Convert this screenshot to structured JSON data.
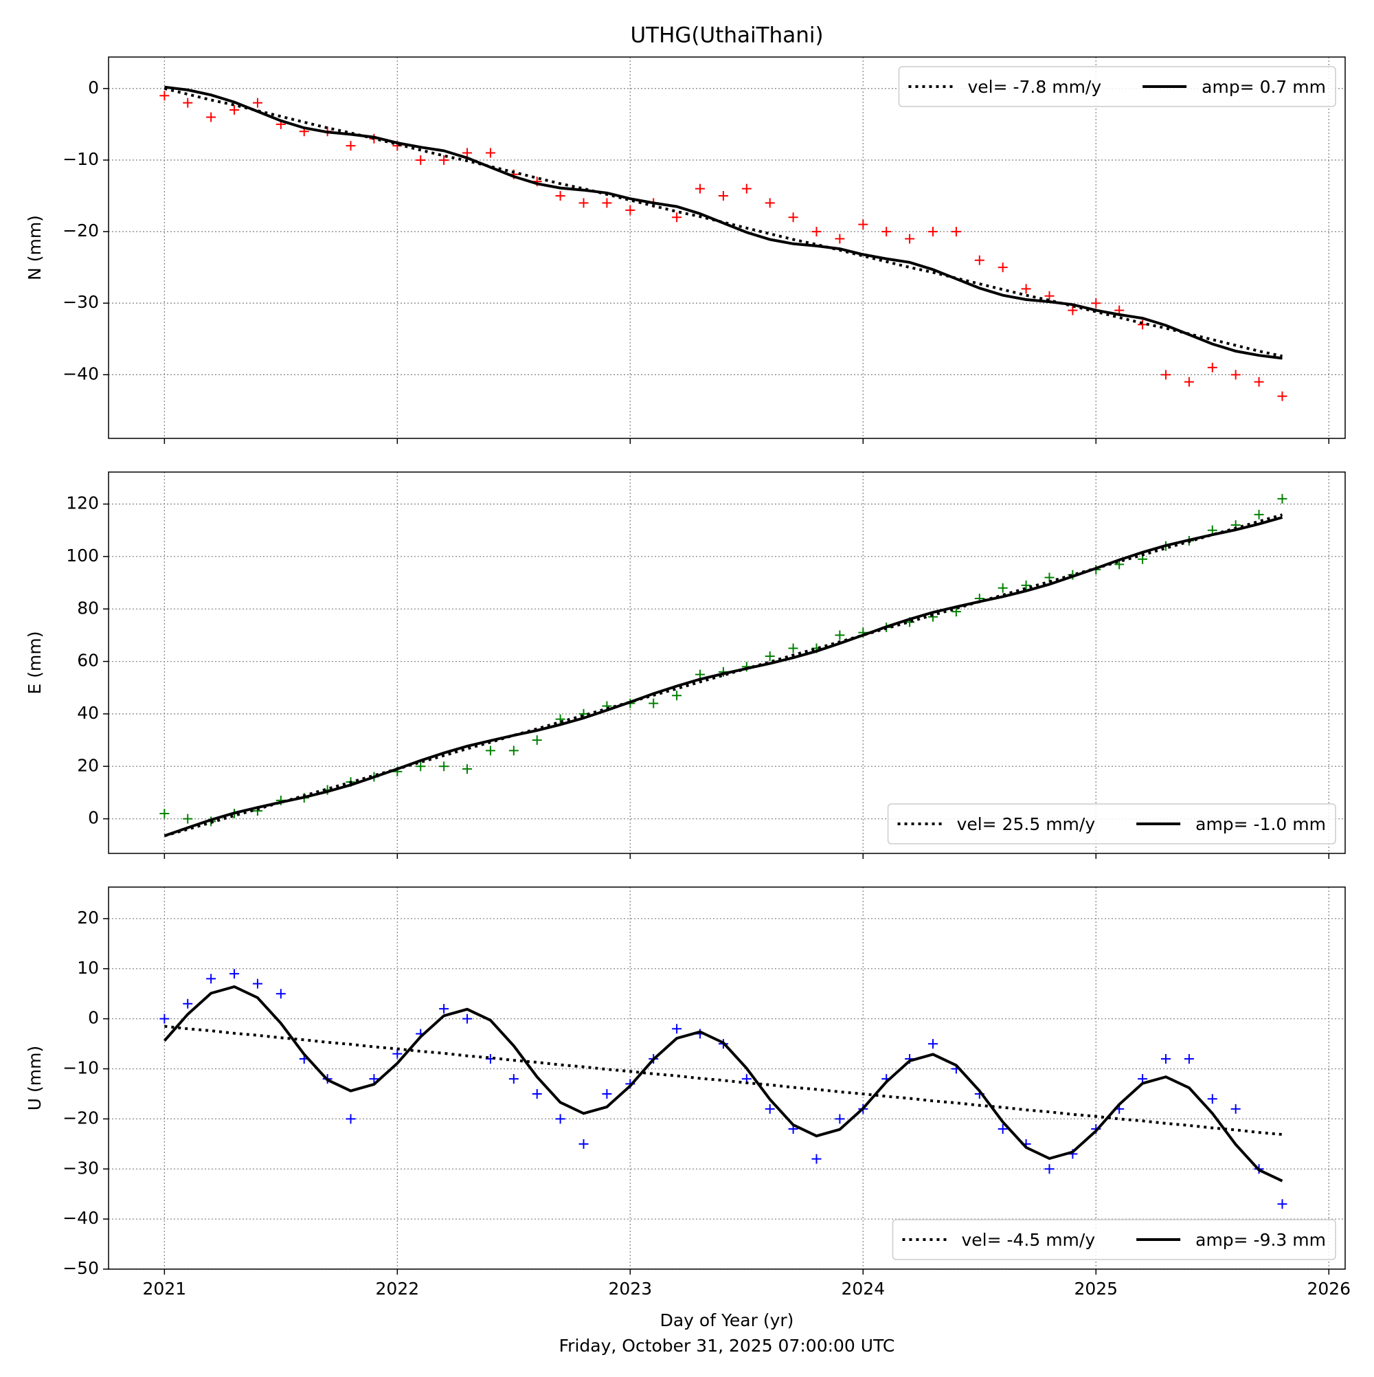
{
  "chart_data": [
    {
      "type": "scatter",
      "title": "UTHG(UthaiThani)",
      "ylabel": "N (mm)",
      "legend": "upper right",
      "grid": true,
      "show_xtick_labels": false,
      "xlim": [
        2020.76,
        2026.07
      ],
      "xticks": [
        2021,
        2022,
        2023,
        2024,
        2025,
        2026
      ],
      "ylim": [
        -48.9,
        4.4
      ],
      "yticks": [
        {
          "value": -40,
          "label": "−40"
        },
        {
          "value": -30,
          "label": "−30"
        },
        {
          "value": -20,
          "label": "−20"
        },
        {
          "value": -10,
          "label": "−10"
        },
        0
      ],
      "x": [
        2021.0,
        2021.1,
        2021.2,
        2021.3,
        2021.4,
        2021.5,
        2021.6,
        2021.7,
        2021.8,
        2021.9,
        2022.0,
        2022.1,
        2022.2,
        2022.3,
        2022.4,
        2022.5,
        2022.6,
        2022.7,
        2022.8,
        2022.9,
        2023.0,
        2023.1,
        2023.2,
        2023.3,
        2023.4,
        2023.5,
        2023.6,
        2023.7,
        2023.8,
        2023.9,
        2024.0,
        2024.1,
        2024.2,
        2024.3,
        2024.4,
        2024.5,
        2024.6,
        2024.7,
        2024.8,
        2024.9,
        2025.0,
        2025.1,
        2025.2,
        2025.3,
        2025.4,
        2025.5,
        2025.6,
        2025.7,
        2025.8
      ],
      "series": [
        {
          "style": "markers",
          "color": "#ff0000",
          "values": [
            -1,
            -2,
            -4,
            -3,
            -2,
            -5,
            -6,
            -6,
            -8,
            -7,
            -8,
            -10,
            -10,
            -9,
            -9,
            -12,
            -13,
            -15,
            -16,
            -16,
            -17,
            -16,
            -18,
            -14,
            -15,
            -14,
            -16,
            -18,
            -20,
            -21,
            -19,
            -20,
            -21,
            -20,
            -20,
            -24,
            -25,
            -28,
            -29,
            -31,
            -30,
            -31,
            -33,
            -40,
            -41,
            -39,
            -40,
            -41,
            -43
          ]
        },
        {
          "style": "dotted",
          "color": "#000000",
          "name": "vel= -7.8 mm/y",
          "values": [
            0,
            -0.8,
            -1.6,
            -2.3,
            -3.1,
            -3.9,
            -4.7,
            -5.5,
            -6.2,
            -7.0,
            -7.8,
            -8.6,
            -9.4,
            -10.1,
            -10.9,
            -11.7,
            -12.5,
            -13.3,
            -14.0,
            -14.8,
            -15.6,
            -16.4,
            -17.2,
            -17.9,
            -18.7,
            -19.5,
            -20.3,
            -21.1,
            -21.8,
            -22.6,
            -23.4,
            -24.2,
            -25.0,
            -25.7,
            -26.5,
            -27.3,
            -28.1,
            -28.9,
            -29.6,
            -30.4,
            -31.2,
            -32.0,
            -32.8,
            -33.5,
            -34.3,
            -35.1,
            -35.9,
            -36.7,
            -37.4
          ]
        },
        {
          "style": "solid",
          "color": "#000000",
          "name": "amp= 0.7 mm",
          "values": [
            0.2,
            -0.2,
            -0.9,
            -1.9,
            -3.2,
            -4.5,
            -5.5,
            -6.1,
            -6.4,
            -6.8,
            -7.6,
            -8.2,
            -8.7,
            -9.7,
            -11.0,
            -12.3,
            -13.3,
            -13.9,
            -14.2,
            -14.6,
            -15.4,
            -16.0,
            -16.5,
            -17.5,
            -18.8,
            -20.1,
            -21.1,
            -21.7,
            -22.0,
            -22.4,
            -23.2,
            -23.8,
            -24.3,
            -25.3,
            -26.6,
            -27.9,
            -28.9,
            -29.5,
            -29.8,
            -30.2,
            -31.0,
            -31.6,
            -32.1,
            -33.1,
            -34.4,
            -35.7,
            -36.7,
            -37.3,
            -37.7
          ]
        }
      ]
    },
    {
      "type": "scatter",
      "ylabel": "E (mm)",
      "legend": "lower right",
      "grid": true,
      "show_xtick_labels": false,
      "xlim": [
        2020.76,
        2026.07
      ],
      "xticks": [
        2021,
        2022,
        2023,
        2024,
        2025,
        2026
      ],
      "ylim": [
        -13.2,
        132.2
      ],
      "yticks": [
        0,
        20,
        40,
        60,
        80,
        100,
        120
      ],
      "x": [
        2021.0,
        2021.1,
        2021.2,
        2021.3,
        2021.4,
        2021.5,
        2021.6,
        2021.7,
        2021.8,
        2021.9,
        2022.0,
        2022.1,
        2022.2,
        2022.3,
        2022.4,
        2022.5,
        2022.6,
        2022.7,
        2022.8,
        2022.9,
        2023.0,
        2023.1,
        2023.2,
        2023.3,
        2023.4,
        2023.5,
        2023.6,
        2023.7,
        2023.8,
        2023.9,
        2024.0,
        2024.1,
        2024.2,
        2024.3,
        2024.4,
        2024.5,
        2024.6,
        2024.7,
        2024.8,
        2024.9,
        2025.0,
        2025.1,
        2025.2,
        2025.3,
        2025.4,
        2025.5,
        2025.6,
        2025.7,
        2025.8
      ],
      "series": [
        {
          "style": "markers",
          "color": "#008000",
          "values": [
            2,
            0,
            -1,
            2,
            3,
            7,
            8,
            11,
            14,
            16,
            18,
            20,
            20,
            19,
            26,
            26,
            30,
            38,
            40,
            43,
            44,
            44,
            47,
            55,
            56,
            58,
            62,
            65,
            65,
            70,
            71,
            73,
            75,
            77,
            79,
            84,
            88,
            89,
            92,
            93,
            95,
            97,
            99,
            104,
            106,
            110,
            112,
            116,
            122
          ]
        },
        {
          "style": "dotted",
          "color": "#000000",
          "name": "vel= 25.5 mm/y",
          "values": [
            -6.5,
            -4.0,
            -1.4,
            1.2,
            3.7,
            6.3,
            8.8,
            11.4,
            13.9,
            16.5,
            19.0,
            21.6,
            24.1,
            26.7,
            29.2,
            31.8,
            34.3,
            36.9,
            39.4,
            42.0,
            44.5,
            47.1,
            49.6,
            52.2,
            54.7,
            57.3,
            59.8,
            62.4,
            64.9,
            67.5,
            70.0,
            72.6,
            75.1,
            77.7,
            80.2,
            82.8,
            85.3,
            87.9,
            90.4,
            93.0,
            95.5,
            98.1,
            100.6,
            103.2,
            105.7,
            108.3,
            110.8,
            113.4,
            115.9
          ]
        },
        {
          "style": "solid",
          "color": "#000000",
          "name": "amp= -1.0 mm",
          "values": [
            -6.5,
            -3.4,
            -0.4,
            2.2,
            4.3,
            6.3,
            8.2,
            10.4,
            12.9,
            15.9,
            19.0,
            22.2,
            25.1,
            27.7,
            29.8,
            31.8,
            33.7,
            35.9,
            38.4,
            41.4,
            44.5,
            47.7,
            50.6,
            53.2,
            55.3,
            57.3,
            59.2,
            61.4,
            63.9,
            66.9,
            70.0,
            73.2,
            76.1,
            78.7,
            80.8,
            82.8,
            84.7,
            86.9,
            89.4,
            92.4,
            95.5,
            98.7,
            101.6,
            104.2,
            106.3,
            108.3,
            110.2,
            112.4,
            114.9
          ]
        }
      ]
    },
    {
      "type": "scatter",
      "ylabel": "U (mm)",
      "xlabel": "Day of Year (yr)",
      "subtitle": "Friday, October 31, 2025 07:00:00 UTC",
      "legend": "lower right",
      "grid": true,
      "show_xtick_labels": true,
      "xlim": [
        2020.76,
        2026.07
      ],
      "xticks": [
        2021,
        2022,
        2023,
        2024,
        2025,
        2026
      ],
      "ylim": [
        -50,
        26.3
      ],
      "yticks": [
        {
          "value": -50,
          "label": "−50"
        },
        {
          "value": -40,
          "label": "−40"
        },
        {
          "value": -30,
          "label": "−30"
        },
        {
          "value": -20,
          "label": "−20"
        },
        {
          "value": -10,
          "label": "−10"
        },
        0,
        10,
        20
      ],
      "x": [
        2021.0,
        2021.1,
        2021.2,
        2021.3,
        2021.4,
        2021.5,
        2021.6,
        2021.7,
        2021.8,
        2021.9,
        2022.0,
        2022.1,
        2022.2,
        2022.3,
        2022.4,
        2022.5,
        2022.6,
        2022.7,
        2022.8,
        2022.9,
        2023.0,
        2023.1,
        2023.2,
        2023.3,
        2023.4,
        2023.5,
        2023.6,
        2023.7,
        2023.8,
        2023.9,
        2024.0,
        2024.1,
        2024.2,
        2024.3,
        2024.4,
        2024.5,
        2024.6,
        2024.7,
        2024.8,
        2024.9,
        2025.0,
        2025.1,
        2025.2,
        2025.3,
        2025.4,
        2025.5,
        2025.6,
        2025.7,
        2025.8
      ],
      "series": [
        {
          "style": "markers",
          "color": "#0000ff",
          "values": [
            0,
            3,
            8,
            9,
            7,
            5,
            -8,
            -12,
            -20,
            -12,
            -7,
            -3,
            2,
            0,
            -8,
            -12,
            -15,
            -20,
            -25,
            -15,
            -13,
            -8,
            -2,
            -3,
            -5,
            -12,
            -18,
            -22,
            -28,
            -20,
            -18,
            -12,
            -8,
            -5,
            -10,
            -15,
            -22,
            -25,
            -30,
            -27,
            -22,
            -18,
            -12,
            -8,
            -8,
            -16,
            -18,
            -30,
            -37
          ]
        },
        {
          "style": "dotted",
          "color": "#000000",
          "name": "vel= -4.5 mm/y",
          "values": [
            -1.5,
            -2.0,
            -2.4,
            -2.9,
            -3.3,
            -3.8,
            -4.2,
            -4.7,
            -5.1,
            -5.6,
            -6.0,
            -6.5,
            -6.9,
            -7.4,
            -7.8,
            -8.3,
            -8.7,
            -9.2,
            -9.6,
            -10.1,
            -10.5,
            -11.0,
            -11.4,
            -11.9,
            -12.3,
            -12.8,
            -13.2,
            -13.7,
            -14.1,
            -14.6,
            -15.0,
            -15.5,
            -15.9,
            -16.4,
            -16.8,
            -17.3,
            -17.7,
            -18.2,
            -18.6,
            -19.1,
            -19.5,
            -20.0,
            -20.4,
            -20.9,
            -21.3,
            -21.8,
            -22.2,
            -22.7,
            -23.1
          ]
        },
        {
          "style": "solid",
          "color": "#000000",
          "name": "amp= -9.3 mm",
          "values": [
            -4.4,
            0.9,
            5.1,
            6.4,
            4.2,
            -0.9,
            -7.1,
            -12.2,
            -14.4,
            -13.1,
            -8.9,
            -3.6,
            0.6,
            1.9,
            -0.3,
            -5.4,
            -11.6,
            -16.7,
            -18.9,
            -17.6,
            -13.4,
            -8.1,
            -3.9,
            -2.6,
            -4.8,
            -9.9,
            -16.1,
            -21.2,
            -23.4,
            -22.1,
            -17.9,
            -12.6,
            -8.4,
            -7.1,
            -9.3,
            -14.4,
            -20.6,
            -25.7,
            -27.9,
            -26.6,
            -22.4,
            -17.1,
            -12.9,
            -11.6,
            -13.8,
            -18.9,
            -25.1,
            -30.2,
            -32.4
          ]
        }
      ]
    }
  ]
}
